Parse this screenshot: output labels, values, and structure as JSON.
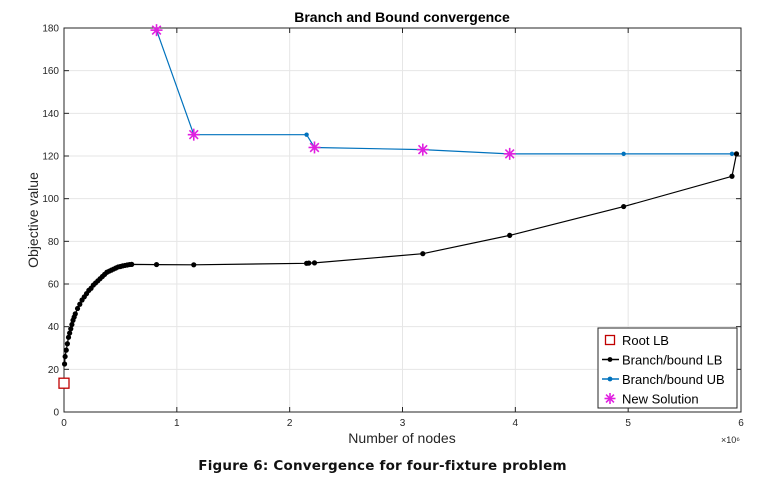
{
  "caption": "Figure 6: Convergence for four-fixture problem",
  "chart_data": {
    "type": "line",
    "title": "Branch and Bound convergence",
    "xlabel": "Number of nodes",
    "ylabel": "Objective value",
    "x_exponent_label": "×10⁶",
    "xlim": [
      0,
      6.0
    ],
    "ylim": [
      0,
      180
    ],
    "xticks": [
      0,
      1,
      2,
      3,
      4,
      5,
      6
    ],
    "xtick_labels": [
      "0",
      "1",
      "2",
      "3",
      "4",
      "5",
      "6"
    ],
    "yticks": [
      0,
      20,
      40,
      60,
      80,
      100,
      120,
      140,
      160,
      180
    ],
    "ytick_labels": [
      "0",
      "20",
      "40",
      "60",
      "80",
      "100",
      "120",
      "140",
      "160",
      "180"
    ],
    "grid": true,
    "legend_position": "bottom-right",
    "colors": {
      "lb": "#000000",
      "ub": "#0072BD",
      "new_solution": "#E020E0",
      "root": "#C00000",
      "grid": "#E6E6E6",
      "axes": "#262626"
    },
    "series": [
      {
        "name": "Root LB",
        "style": "square-marker",
        "x": [
          0.0
        ],
        "y": [
          13.5
        ]
      },
      {
        "name": "Branch/bound LB",
        "style": "line-dot",
        "x": [
          0.005,
          0.01,
          0.02,
          0.03,
          0.04,
          0.05,
          0.06,
          0.07,
          0.08,
          0.09,
          0.1,
          0.12,
          0.14,
          0.16,
          0.18,
          0.2,
          0.22,
          0.24,
          0.26,
          0.28,
          0.3,
          0.32,
          0.34,
          0.36,
          0.38,
          0.4,
          0.42,
          0.44,
          0.46,
          0.48,
          0.5,
          0.52,
          0.54,
          0.56,
          0.58,
          0.6,
          0.82,
          1.15,
          2.15,
          2.17,
          2.22,
          3.18,
          3.95,
          4.96,
          5.92,
          5.96
        ],
        "y": [
          22.5,
          26,
          29,
          32,
          35,
          37,
          39,
          41,
          43,
          44.5,
          46,
          48.5,
          50.5,
          52.5,
          54,
          55.5,
          57,
          58,
          59.5,
          60.5,
          61.5,
          62.5,
          63.5,
          64.5,
          65.5,
          66,
          66.5,
          67,
          67.5,
          68,
          68.2,
          68.5,
          68.7,
          68.9,
          69.1,
          69.2,
          69.1,
          69,
          69.7,
          69.8,
          69.9,
          74.2,
          82.8,
          96.3,
          110.5,
          121
        ]
      },
      {
        "name": "Branch/bound UB",
        "style": "line-dot",
        "x": [
          0.82,
          1.15,
          2.15,
          2.22,
          3.18,
          3.95,
          4.96,
          5.92,
          5.96
        ],
        "y": [
          179,
          130,
          130,
          124,
          123,
          121,
          121,
          121,
          121
        ]
      },
      {
        "name": "New Solution",
        "style": "star-marker",
        "x": [
          0.82,
          1.15,
          2.22,
          3.18,
          3.95
        ],
        "y": [
          179,
          130,
          124,
          123,
          121
        ]
      }
    ]
  }
}
